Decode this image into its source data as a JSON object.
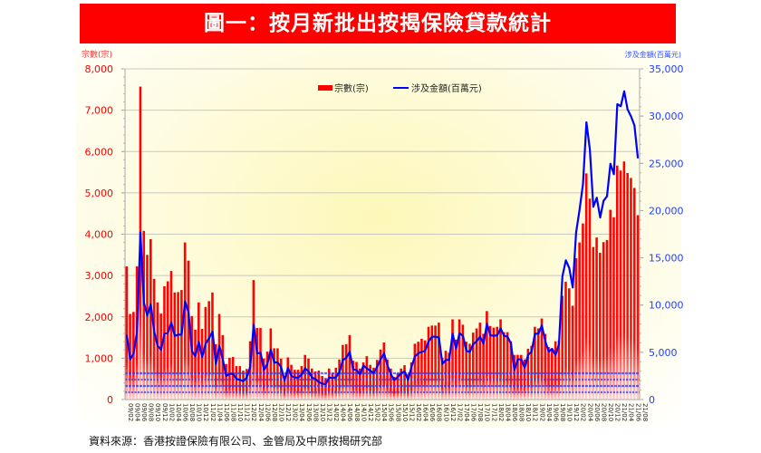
{
  "title": "圖一：按月新批出按揭保險貸款統計",
  "source": "資料來源：香港按證保險有限公司、金管局及中原按揭研究部",
  "colors": {
    "bars": "#ff0000",
    "line": "#0000ff",
    "title_bg": "#ff0000"
  },
  "chart_data": {
    "type": "bar+line",
    "left_axis_label": "宗數(宗)",
    "right_axis_label": "涉及金額(百萬元)",
    "left_ylim": [
      0,
      8000
    ],
    "right_ylim": [
      0,
      35000
    ],
    "left_ticks": [
      "0",
      "1,000",
      "2,000",
      "3,000",
      "4,000",
      "5,000",
      "6,000",
      "7,000",
      "8,000"
    ],
    "right_ticks": [
      "0",
      "5,000",
      "10,000",
      "15,000",
      "20,000",
      "25,000",
      "30,000",
      "35,000"
    ],
    "legend": [
      "宗數(宗)",
      "涉及金額(百萬元)"
    ],
    "legend_position": "top-center",
    "x_period": "monthly 2009/02 - 2021/08",
    "x_tick_labels": [
      "09/02",
      "09/04",
      "09/06",
      "09/08",
      "09/10",
      "09/12",
      "10/02",
      "10/04",
      "10/06",
      "10/08",
      "10/10",
      "10/12",
      "11/02",
      "11/04",
      "11/06",
      "11/08",
      "11/10",
      "11/12",
      "12/02",
      "12/04",
      "12/06",
      "12/08",
      "12/10",
      "12/12",
      "13/02",
      "13/04",
      "13/06",
      "13/08",
      "13/10",
      "13/12",
      "14/02",
      "14/04",
      "14/06",
      "14/08",
      "14/10",
      "14/12",
      "15/02",
      "15/04",
      "15/06",
      "15/08",
      "15/10",
      "15/12",
      "16/02",
      "16/04",
      "16/06",
      "16/08",
      "16/10",
      "16/12",
      "17/02",
      "17/04",
      "17/06",
      "17/08",
      "17/10",
      "17/12",
      "18/02",
      "18/04",
      "18/06",
      "18/08",
      "18/10",
      "18/12",
      "19/02",
      "19/04",
      "19/06",
      "19/08",
      "19/10",
      "19/12",
      "20/02",
      "20/04",
      "20/06",
      "20/08",
      "20/10",
      "20/12",
      "21/02",
      "21/04",
      "21/06",
      "21/08"
    ],
    "series": [
      {
        "name": "宗數(宗)",
        "type": "bar",
        "axis": "left",
        "values": [
          3220,
          2070,
          2120,
          3220,
          7570,
          4080,
          3500,
          3880,
          2920,
          2350,
          2080,
          2740,
          2860,
          3110,
          2590,
          2600,
          2650,
          3800,
          3360,
          2020,
          1690,
          2350,
          1710,
          2240,
          2380,
          2590,
          1340,
          2070,
          1560,
          860,
          1010,
          1030,
          810,
          810,
          700,
          740,
          1410,
          2890,
          1730,
          1730,
          990,
          1160,
          1720,
          1240,
          1240,
          990,
          570,
          1020,
          840,
          720,
          720,
          810,
          1080,
          990,
          750,
          680,
          700,
          570,
          520,
          750,
          640,
          770,
          970,
          1320,
          1340,
          1560,
          940,
          910,
          750,
          900,
          1050,
          840,
          770,
          960,
          1210,
          1380,
          970,
          750,
          550,
          640,
          750,
          830,
          610,
          900,
          1350,
          1400,
          1470,
          1430,
          1760,
          1790,
          1790,
          1860,
          1010,
          1180,
          1130,
          1940,
          1450,
          1940,
          1810,
          1400,
          1350,
          1620,
          1720,
          1860,
          1590,
          2140,
          1780,
          1740,
          1760,
          1940,
          1630,
          1630,
          1410,
          1080,
          1080,
          1080,
          970,
          1230,
          1300,
          1760,
          1720,
          1960,
          1590,
          1270,
          1230,
          1410,
          1430,
          2510,
          2850,
          2690,
          2270,
          3420,
          3800,
          4260,
          5470,
          4860,
          3690,
          3920,
          3550,
          3810,
          3860,
          4590,
          4410,
          5660,
          5540,
          5760,
          5480,
          5360,
          5120,
          4460
        ]
      },
      {
        "name": "涉及金額(百萬元)",
        "type": "line",
        "axis": "right",
        "values": [
          6870,
          4250,
          4890,
          7190,
          17670,
          10260,
          8890,
          10070,
          7190,
          5680,
          5270,
          6980,
          7060,
          8150,
          6740,
          6870,
          6870,
          10390,
          9210,
          5150,
          4570,
          6110,
          4510,
          5920,
          6490,
          7190,
          3770,
          5680,
          4250,
          2490,
          2710,
          2710,
          2180,
          2080,
          1950,
          2330,
          3450,
          7930,
          4890,
          4950,
          3130,
          3770,
          5270,
          3930,
          3930,
          3450,
          2010,
          3360,
          2490,
          2330,
          2330,
          2650,
          3290,
          2970,
          2330,
          2170,
          1850,
          1690,
          1630,
          2330,
          2270,
          2370,
          2910,
          4190,
          4410,
          5050,
          3200,
          3130,
          2650,
          3610,
          3290,
          3040,
          2810,
          3450,
          4250,
          4890,
          3610,
          2650,
          2080,
          2370,
          2810,
          2970,
          2080,
          3450,
          4570,
          4890,
          5050,
          5150,
          6170,
          6650,
          6650,
          6550,
          3770,
          4190,
          4190,
          6970,
          5370,
          7030,
          6740,
          5150,
          5050,
          5850,
          6170,
          6650,
          5920,
          8030,
          6810,
          6740,
          6810,
          7510,
          6740,
          6650,
          5920,
          3130,
          4250,
          4250,
          3360,
          4730,
          5050,
          6970,
          6970,
          7830,
          6170,
          5050,
          5370,
          4730,
          5850,
          13040,
          14740,
          13900,
          11860,
          17670,
          20070,
          22790,
          29340,
          26470,
          20400,
          21360,
          19270,
          21030,
          21510,
          24960,
          23850,
          31260,
          31040,
          32630,
          30710,
          29980,
          29020,
          25540
        ]
      }
    ]
  }
}
